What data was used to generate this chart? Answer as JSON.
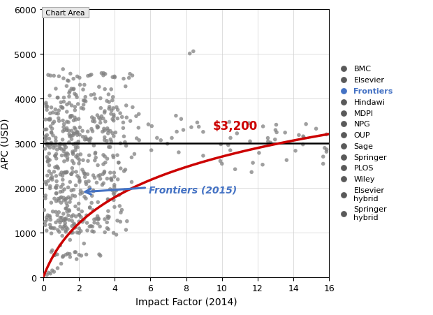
{
  "xlabel": "Impact Factor (2014)",
  "ylabel": "APC (USD)",
  "xlim": [
    0,
    16
  ],
  "ylim": [
    0,
    6000
  ],
  "xticks": [
    0,
    2,
    4,
    6,
    8,
    10,
    12,
    14,
    16
  ],
  "yticks": [
    0,
    1000,
    2000,
    3000,
    4000,
    5000,
    6000
  ],
  "bg_color": "#ffffff",
  "scatter_color": "#808080",
  "curve_color": "#cc0000",
  "hline_y": 3000,
  "hline_color": "#000000",
  "annotation_3200_text": "$3,200",
  "annotation_3200_color": "#cc0000",
  "annotation_frontiers_text": "Frontiers (2015)",
  "annotation_frontiers_color": "#4472c4",
  "chart_area_label": "Chart Area",
  "legend_entries": [
    "BMC",
    "Elsevier",
    "Frontiers",
    "Hindawi",
    "MDPI",
    "NPG",
    "OUP",
    "Sage",
    "Springer",
    "PLOS",
    "Wiley",
    "Elsevier\nhybrid",
    "Springer\nhybrid"
  ],
  "legend_dot_colors": [
    "#595959",
    "#595959",
    "#4472c4",
    "#595959",
    "#595959",
    "#595959",
    "#595959",
    "#595959",
    "#595959",
    "#595959",
    "#595959",
    "#595959",
    "#595959"
  ],
  "curve_k": 0.9,
  "curve_ymax": 3200
}
